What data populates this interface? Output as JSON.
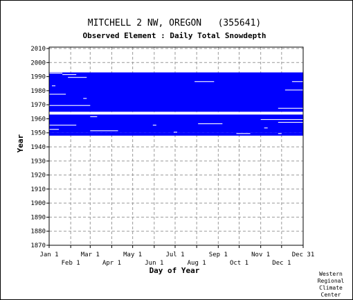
{
  "chart_data": {
    "type": "heatmap",
    "title": "MITCHELL 2 NW, OREGON   (355641)",
    "subtitle": "Observed Element : Daily Total Snowdepth",
    "xlabel": "Day of Year",
    "ylabel": "Year",
    "ylim": [
      1870,
      2011
    ],
    "xlim": [
      1,
      366
    ],
    "y_ticks": [
      2010,
      2000,
      1990,
      1980,
      1970,
      1960,
      1950,
      1940,
      1930,
      1920,
      1910,
      1900,
      1890,
      1880,
      1870
    ],
    "x_ticks_upper": [
      {
        "label": "Jan 1",
        "day": 1
      },
      {
        "label": "Mar 1",
        "day": 60
      },
      {
        "label": "May 1",
        "day": 121
      },
      {
        "label": "Jul 1",
        "day": 182
      },
      {
        "label": "Sep 1",
        "day": 244
      },
      {
        "label": "Nov 1",
        "day": 305
      },
      {
        "label": "Dec 31",
        "day": 366
      }
    ],
    "x_ticks_lower": [
      {
        "label": "Feb 1",
        "day": 32
      },
      {
        "label": "Apr 1",
        "day": 91
      },
      {
        "label": "Jun 1",
        "day": 152
      },
      {
        "label": "Aug 1",
        "day": 213
      },
      {
        "label": "Oct 1",
        "day": 274
      },
      {
        "label": "Dec 1",
        "day": 335
      }
    ],
    "grid": true,
    "data_color": "#0000ff",
    "data_blocks": [
      {
        "start_year": 1948,
        "end_year": 1950,
        "start_day": 1,
        "end_day": 366
      },
      {
        "start_year": 1950,
        "end_year": 1963,
        "start_day": 1,
        "end_day": 366
      },
      {
        "start_year": 1965,
        "end_year": 1993,
        "start_day": 1,
        "end_day": 366
      }
    ],
    "missing_segments": [
      {
        "year": 1992,
        "start_day": 1,
        "end_day": 20
      },
      {
        "year": 1991,
        "start_day": 20,
        "end_day": 40
      },
      {
        "year": 1989,
        "start_day": 28,
        "end_day": 55
      },
      {
        "year": 1986,
        "start_day": 210,
        "end_day": 238
      },
      {
        "year": 1986,
        "start_day": 350,
        "end_day": 366
      },
      {
        "year": 1983,
        "start_day": 5,
        "end_day": 10
      },
      {
        "year": 1980,
        "start_day": 340,
        "end_day": 366
      },
      {
        "year": 1977,
        "start_day": 1,
        "end_day": 25
      },
      {
        "year": 1974,
        "start_day": 50,
        "end_day": 55
      },
      {
        "year": 1969,
        "start_day": 1,
        "end_day": 60
      },
      {
        "year": 1967,
        "start_day": 330,
        "end_day": 366
      },
      {
        "year": 1964,
        "start_day": 1,
        "end_day": 366
      },
      {
        "year": 1961,
        "start_day": 60,
        "end_day": 70
      },
      {
        "year": 1959,
        "start_day": 305,
        "end_day": 366
      },
      {
        "year": 1957,
        "start_day": 330,
        "end_day": 366
      },
      {
        "year": 1956,
        "start_day": 215,
        "end_day": 250
      },
      {
        "year": 1955,
        "start_day": 1,
        "end_day": 40
      },
      {
        "year": 1955,
        "start_day": 150,
        "end_day": 155
      },
      {
        "year": 1953,
        "start_day": 310,
        "end_day": 315
      },
      {
        "year": 1952,
        "start_day": 1,
        "end_day": 15
      },
      {
        "year": 1951,
        "start_day": 60,
        "end_day": 100
      },
      {
        "year": 1950,
        "start_day": 180,
        "end_day": 185
      },
      {
        "year": 1949,
        "start_day": 270,
        "end_day": 290
      },
      {
        "year": 1949,
        "start_day": 330,
        "end_day": 335
      }
    ]
  },
  "credit_lines": [
    "Western",
    "Regional",
    "Climate",
    "Center"
  ]
}
